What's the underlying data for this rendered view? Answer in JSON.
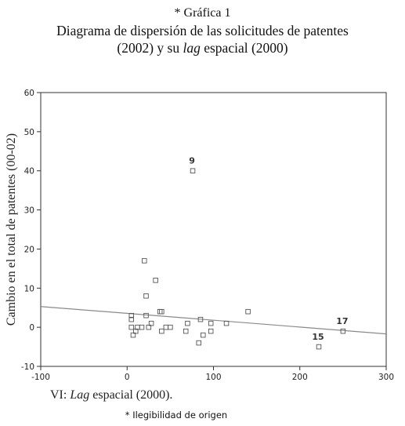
{
  "header": {
    "kicker": "* Gráfica 1",
    "title_line1": "Diagrama de dispersión de las solicitudes de patentes",
    "title_line2_pre": "(2002) y su ",
    "title_line2_italic": "lag",
    "title_line2_post": " espacial (2000)"
  },
  "chart_data": {
    "type": "scatter",
    "xlabel_pre": "VI: ",
    "xlabel_italic": "Lag",
    "xlabel_post": " espacial (2000).",
    "ylabel": "Cambio en el total de patentes (00-02)",
    "xlim": [
      -100,
      300
    ],
    "ylim": [
      -10,
      60
    ],
    "x_ticks": [
      "-100",
      "0",
      "100",
      "200",
      "300"
    ],
    "y_ticks": [
      "-10",
      "0",
      "10",
      "20",
      "30",
      "40",
      "50",
      "60"
    ],
    "grid": false,
    "points": [
      {
        "x": 76,
        "y": 40,
        "label": "9"
      },
      {
        "x": 20,
        "y": 17
      },
      {
        "x": 33,
        "y": 12
      },
      {
        "x": 22,
        "y": 8
      },
      {
        "x": 38,
        "y": 4
      },
      {
        "x": 40,
        "y": 4
      },
      {
        "x": 140,
        "y": 4
      },
      {
        "x": 5,
        "y": 3
      },
      {
        "x": 22,
        "y": 3
      },
      {
        "x": 5,
        "y": 2
      },
      {
        "x": 85,
        "y": 2
      },
      {
        "x": 28,
        "y": 1
      },
      {
        "x": 70,
        "y": 1
      },
      {
        "x": 97,
        "y": 1
      },
      {
        "x": 115,
        "y": 1
      },
      {
        "x": 5,
        "y": 0
      },
      {
        "x": 12,
        "y": 0
      },
      {
        "x": 17,
        "y": 0
      },
      {
        "x": 25,
        "y": 0
      },
      {
        "x": 45,
        "y": 0
      },
      {
        "x": 50,
        "y": 0
      },
      {
        "x": 10,
        "y": -1
      },
      {
        "x": 40,
        "y": -1
      },
      {
        "x": 68,
        "y": -1
      },
      {
        "x": 97,
        "y": -1
      },
      {
        "x": 250,
        "y": -1,
        "label": "17"
      },
      {
        "x": 7,
        "y": -2
      },
      {
        "x": 88,
        "y": -2
      },
      {
        "x": 83,
        "y": -4
      },
      {
        "x": 222,
        "y": -5,
        "label": "15"
      }
    ],
    "fit_line": {
      "x": [
        -100,
        300
      ],
      "y": [
        5.3,
        -1.7
      ]
    },
    "colors": {
      "axis": "#333333",
      "marker": "#555555",
      "fit_line": "#8a8a8a",
      "text": "#222222"
    }
  },
  "footnote": "* Ilegibilidad de origen"
}
